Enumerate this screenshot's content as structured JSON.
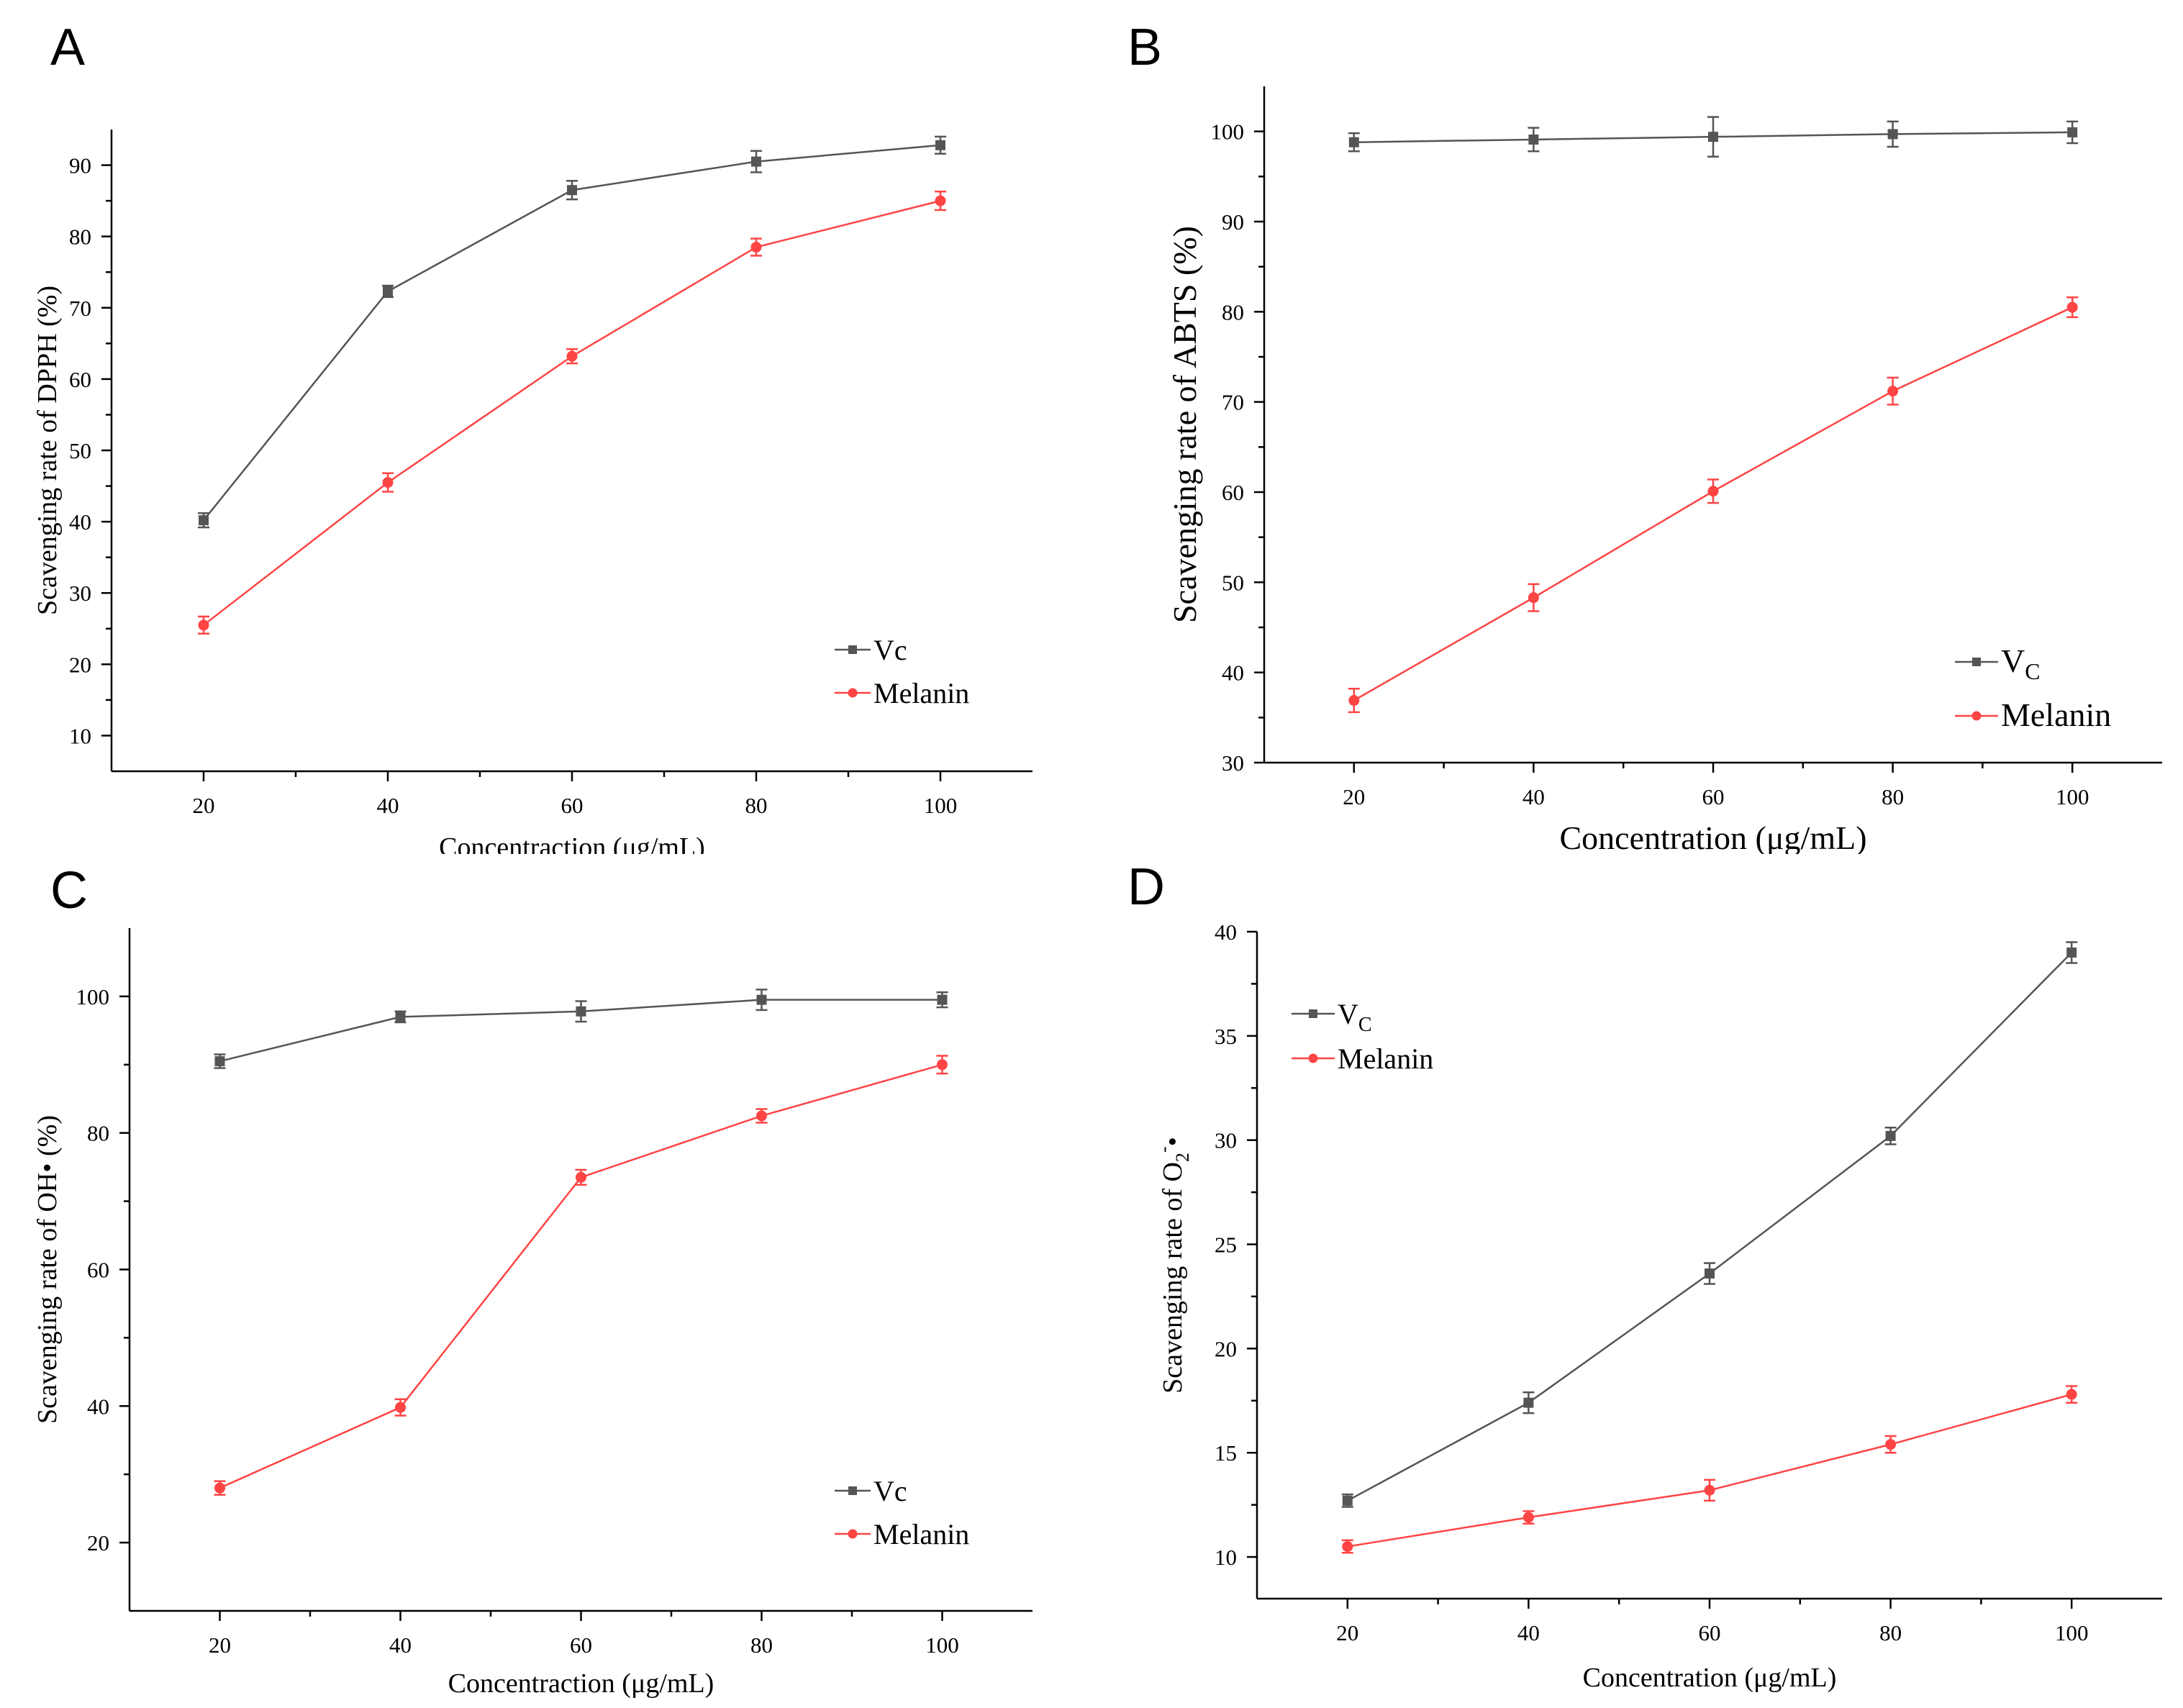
{
  "chart_data": [
    {
      "id": "A",
      "panel_label": "A",
      "type": "line",
      "title": "",
      "xlabel": "Concentraction (μg/mL)",
      "ylabel": "Scavenging rate of DPPH (%)",
      "xlim": [
        10,
        110
      ],
      "ylim": [
        5,
        95
      ],
      "xticks": [
        20,
        40,
        60,
        80,
        100
      ],
      "yticks": [
        10,
        20,
        30,
        40,
        50,
        60,
        70,
        80,
        90
      ],
      "legend_position": "lower-right",
      "x": [
        20,
        40,
        60,
        80,
        100
      ],
      "series": [
        {
          "name": "Vc",
          "legend_main": "Vc",
          "legend_sub": "",
          "color": "#555555",
          "marker": "square",
          "values": [
            40.2,
            72.3,
            86.5,
            90.5,
            92.8
          ],
          "errors": [
            1.0,
            0.8,
            1.3,
            1.5,
            1.2
          ]
        },
        {
          "name": "Melanin",
          "legend_main": "Melanin",
          "legend_sub": "",
          "color": "#ff4444",
          "marker": "circle",
          "values": [
            25.5,
            45.5,
            63.2,
            78.5,
            85.0
          ],
          "errors": [
            1.2,
            1.3,
            1.0,
            1.2,
            1.3
          ]
        }
      ]
    },
    {
      "id": "B",
      "panel_label": "B",
      "type": "line",
      "title": "",
      "xlabel": "Concentration (μg/mL)",
      "ylabel": "Scavenging rate of ABTS (%)",
      "xlim": [
        10,
        110
      ],
      "ylim": [
        30,
        105
      ],
      "xticks": [
        20,
        40,
        60,
        80,
        100
      ],
      "yticks": [
        30,
        40,
        50,
        60,
        70,
        80,
        90,
        100
      ],
      "legend_position": "lower-right",
      "x": [
        20,
        40,
        60,
        80,
        100
      ],
      "series": [
        {
          "name": "Vc",
          "legend_main": "V",
          "legend_sub": "C",
          "color": "#555555",
          "marker": "square",
          "values": [
            98.8,
            99.1,
            99.4,
            99.7,
            99.9
          ],
          "errors": [
            1.0,
            1.3,
            2.2,
            1.4,
            1.2
          ]
        },
        {
          "name": "Melanin",
          "legend_main": "Melanin",
          "legend_sub": "",
          "color": "#ff4444",
          "marker": "circle",
          "values": [
            36.9,
            48.3,
            60.1,
            71.2,
            80.5
          ],
          "errors": [
            1.3,
            1.5,
            1.3,
            1.5,
            1.1
          ]
        }
      ]
    },
    {
      "id": "C",
      "panel_label": "C",
      "type": "line",
      "title": "",
      "xlabel": "Concentraction (μg/mL)",
      "ylabel": "Scavenging rate of OH• (%)",
      "xlim": [
        10,
        110
      ],
      "ylim": [
        10,
        110
      ],
      "xticks": [
        20,
        40,
        60,
        80,
        100
      ],
      "yticks": [
        20,
        40,
        60,
        80,
        100
      ],
      "legend_position": "lower-right",
      "x": [
        20,
        40,
        60,
        80,
        100
      ],
      "series": [
        {
          "name": "Vc",
          "legend_main": "Vc",
          "legend_sub": "",
          "color": "#555555",
          "marker": "square",
          "values": [
            90.5,
            97.0,
            97.8,
            99.5,
            99.5
          ],
          "errors": [
            1.0,
            0.8,
            1.5,
            1.5,
            1.1
          ]
        },
        {
          "name": "Melanin",
          "legend_main": "Melanin",
          "legend_sub": "",
          "color": "#ff4444",
          "marker": "circle",
          "values": [
            28.0,
            39.8,
            73.5,
            82.5,
            90.0
          ],
          "errors": [
            1.0,
            1.2,
            1.1,
            1.0,
            1.3
          ]
        }
      ]
    },
    {
      "id": "D",
      "panel_label": "D",
      "type": "line",
      "title": "",
      "xlabel": "Concentration (μg/mL)",
      "ylabel": "Scavenging rate of O2-•",
      "ylabel_main": "Scavenging rate of O",
      "ylabel_sub": "2",
      "ylabel_sup": "-",
      "ylabel_tail": "•",
      "xlim": [
        10,
        110
      ],
      "ylim": [
        8,
        40
      ],
      "xticks": [
        20,
        40,
        60,
        80,
        100
      ],
      "yticks": [
        10,
        15,
        20,
        25,
        30,
        35,
        40
      ],
      "legend_position": "top-left",
      "x": [
        20,
        40,
        60,
        80,
        100
      ],
      "series": [
        {
          "name": "Vc",
          "legend_main": "V",
          "legend_sub": "C",
          "color": "#555555",
          "marker": "square",
          "values": [
            12.7,
            17.4,
            23.6,
            30.2,
            39.0
          ],
          "errors": [
            0.3,
            0.5,
            0.5,
            0.4,
            0.5
          ]
        },
        {
          "name": "Melanin",
          "legend_main": "Melanin",
          "legend_sub": "",
          "color": "#ff4444",
          "marker": "circle",
          "values": [
            10.5,
            11.9,
            13.2,
            15.4,
            17.8
          ],
          "errors": [
            0.3,
            0.3,
            0.5,
            0.4,
            0.4
          ]
        }
      ]
    }
  ]
}
